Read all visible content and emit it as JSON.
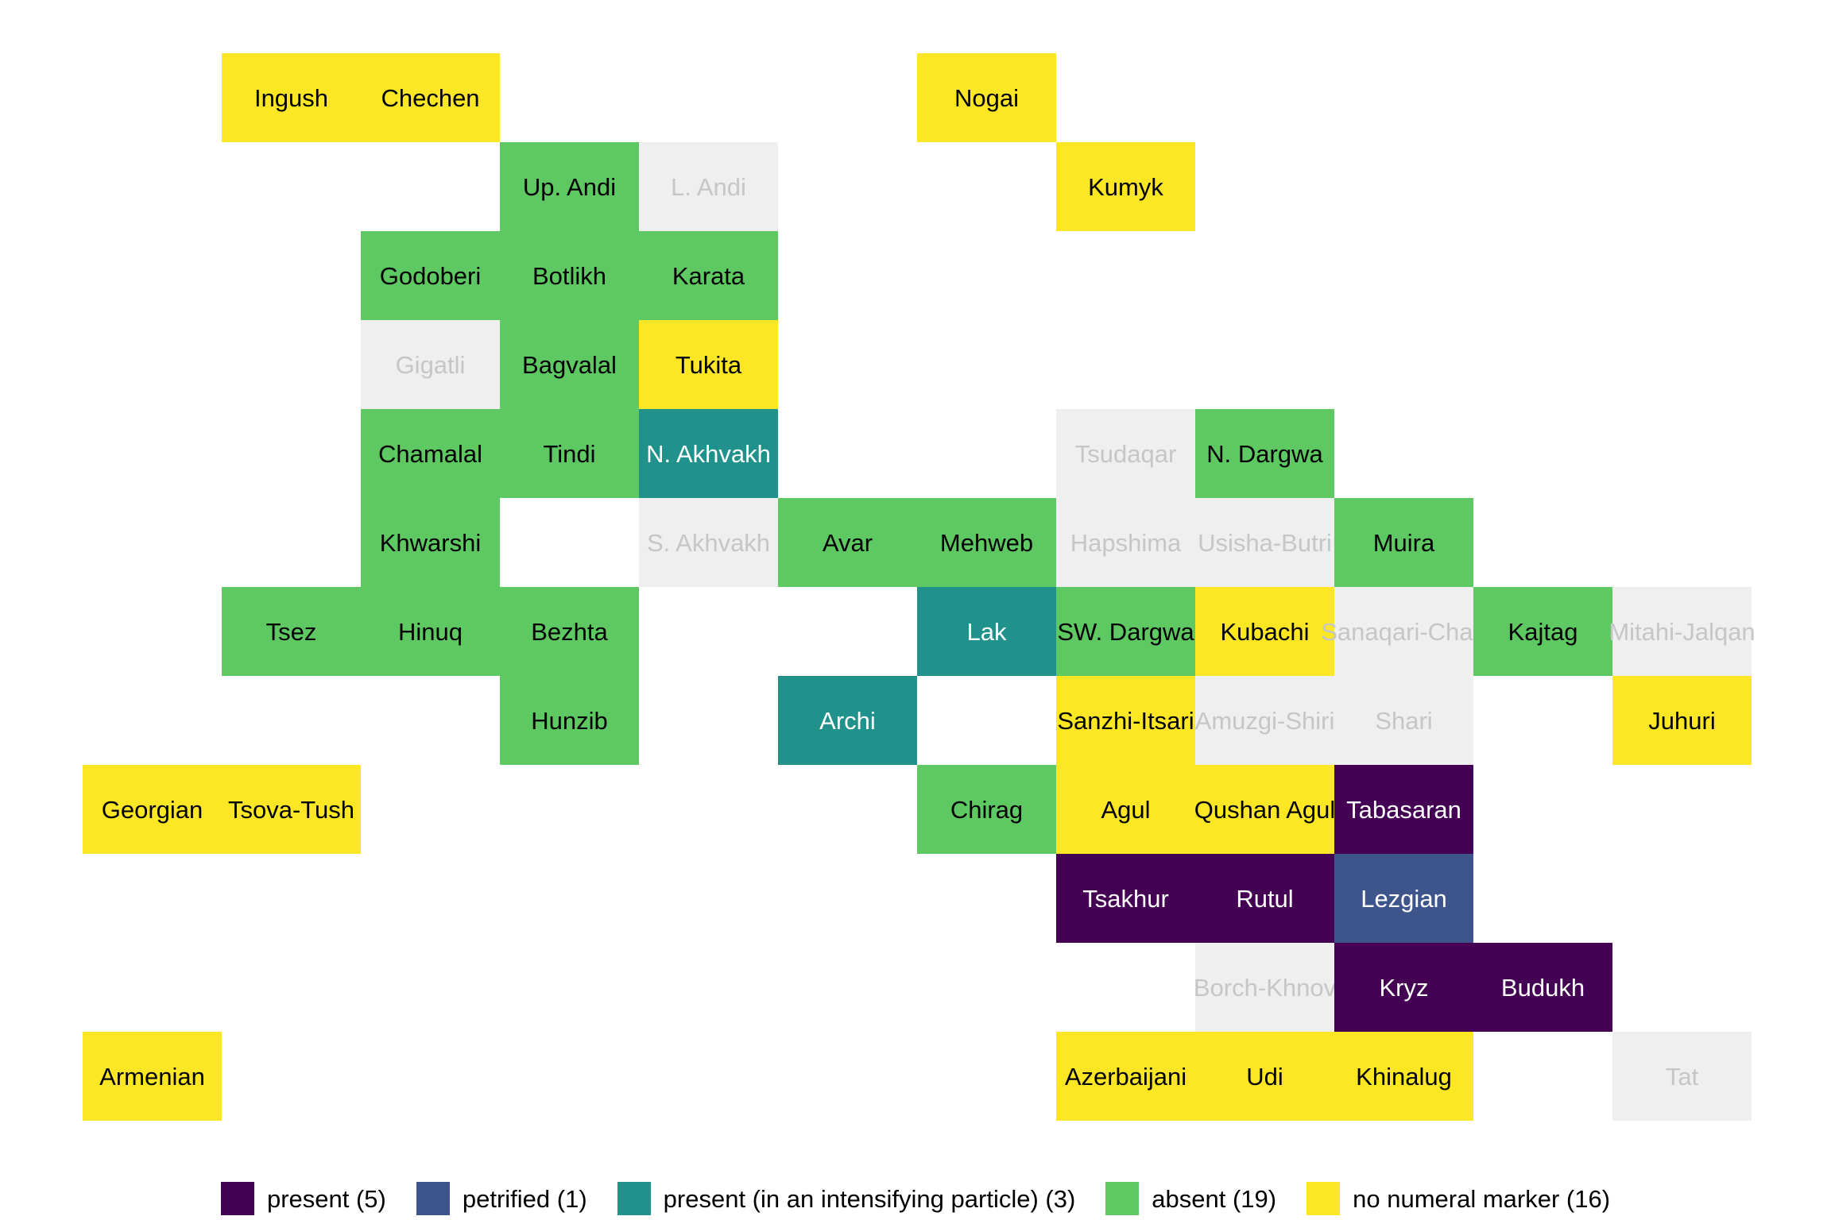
{
  "chart_data": {
    "type": "heatmap",
    "subtype": "genealogical-tile-map",
    "title": "",
    "grid": {
      "rows": 12,
      "cols": 12,
      "gridlines": false
    },
    "legend_position": "bottom-center",
    "legend": [
      {
        "value": "present",
        "label": "present (5)",
        "count": 5,
        "color": "#440154",
        "text_color": "#ffffff"
      },
      {
        "value": "petrified",
        "label": "petrified (1)",
        "count": 1,
        "color": "#3e558c",
        "text_color": "#ffffff"
      },
      {
        "value": "intensifying",
        "label": "present (in an intensifying particle) (3)",
        "count": 3,
        "color": "#21918c",
        "text_color": "#ffffff"
      },
      {
        "value": "absent",
        "label": "absent (19)",
        "count": 19,
        "color": "#5ec962",
        "text_color": "#000000"
      },
      {
        "value": "no_numeral",
        "label": "no numeral marker (16)",
        "count": 16,
        "color": "#fde725",
        "text_color": "#000000"
      }
    ],
    "no_data": {
      "value": "no_data",
      "color": "#efefef",
      "text_color": "#c6c6c6"
    },
    "cells": [
      {
        "name": "Ingush",
        "row": 0,
        "col": 1,
        "value": "no_numeral"
      },
      {
        "name": "Chechen",
        "row": 0,
        "col": 2,
        "value": "no_numeral"
      },
      {
        "name": "Nogai",
        "row": 0,
        "col": 6,
        "value": "no_numeral"
      },
      {
        "name": "Up. Andi",
        "row": 1,
        "col": 3,
        "value": "absent"
      },
      {
        "name": "L. Andi",
        "row": 1,
        "col": 4,
        "value": "no_data"
      },
      {
        "name": "Kumyk",
        "row": 1,
        "col": 7,
        "value": "no_numeral"
      },
      {
        "name": "Godoberi",
        "row": 2,
        "col": 2,
        "value": "absent"
      },
      {
        "name": "Botlikh",
        "row": 2,
        "col": 3,
        "value": "absent"
      },
      {
        "name": "Karata",
        "row": 2,
        "col": 4,
        "value": "absent"
      },
      {
        "name": "Gigatli",
        "row": 3,
        "col": 2,
        "value": "no_data"
      },
      {
        "name": "Bagvalal",
        "row": 3,
        "col": 3,
        "value": "absent"
      },
      {
        "name": "Tukita",
        "row": 3,
        "col": 4,
        "value": "no_numeral"
      },
      {
        "name": "Chamalal",
        "row": 4,
        "col": 2,
        "value": "absent"
      },
      {
        "name": "Tindi",
        "row": 4,
        "col": 3,
        "value": "absent"
      },
      {
        "name": "N. Akhvakh",
        "row": 4,
        "col": 4,
        "value": "intensifying"
      },
      {
        "name": "Tsudaqar",
        "row": 4,
        "col": 7,
        "value": "no_data"
      },
      {
        "name": "N. Dargwa",
        "row": 4,
        "col": 8,
        "value": "absent"
      },
      {
        "name": "Khwarshi",
        "row": 5,
        "col": 2,
        "value": "absent"
      },
      {
        "name": "S. Akhvakh",
        "row": 5,
        "col": 4,
        "value": "no_data"
      },
      {
        "name": "Avar",
        "row": 5,
        "col": 5,
        "value": "absent"
      },
      {
        "name": "Mehweb",
        "row": 5,
        "col": 6,
        "value": "absent"
      },
      {
        "name": "Hapshima",
        "row": 5,
        "col": 7,
        "value": "no_data"
      },
      {
        "name": "Usisha-Butri",
        "row": 5,
        "col": 8,
        "value": "no_data"
      },
      {
        "name": "Muira",
        "row": 5,
        "col": 9,
        "value": "absent"
      },
      {
        "name": "Tsez",
        "row": 6,
        "col": 1,
        "value": "absent"
      },
      {
        "name": "Hinuq",
        "row": 6,
        "col": 2,
        "value": "absent"
      },
      {
        "name": "Bezhta",
        "row": 6,
        "col": 3,
        "value": "absent"
      },
      {
        "name": "Lak",
        "row": 6,
        "col": 6,
        "value": "intensifying"
      },
      {
        "name": "SW. Dargwa",
        "row": 6,
        "col": 7,
        "value": "absent"
      },
      {
        "name": "Kubachi",
        "row": 6,
        "col": 8,
        "value": "no_numeral"
      },
      {
        "name": "Sanaqari-Chah",
        "row": 6,
        "col": 9,
        "value": "no_data"
      },
      {
        "name": "Kajtag",
        "row": 6,
        "col": 10,
        "value": "absent"
      },
      {
        "name": "Mitahi-Jalqan",
        "row": 6,
        "col": 11,
        "value": "no_data"
      },
      {
        "name": "Hunzib",
        "row": 7,
        "col": 3,
        "value": "absent"
      },
      {
        "name": "Archi",
        "row": 7,
        "col": 5,
        "value": "intensifying"
      },
      {
        "name": "Sanzhi-Itsari",
        "row": 7,
        "col": 7,
        "value": "no_numeral"
      },
      {
        "name": "Amuzgi-Shiri",
        "row": 7,
        "col": 8,
        "value": "no_data"
      },
      {
        "name": "Shari",
        "row": 7,
        "col": 9,
        "value": "no_data"
      },
      {
        "name": "Juhuri",
        "row": 7,
        "col": 11,
        "value": "no_numeral"
      },
      {
        "name": "Georgian",
        "row": 8,
        "col": 0,
        "value": "no_numeral"
      },
      {
        "name": "Tsova-Tush",
        "row": 8,
        "col": 1,
        "value": "no_numeral"
      },
      {
        "name": "Chirag",
        "row": 8,
        "col": 6,
        "value": "absent"
      },
      {
        "name": "Agul",
        "row": 8,
        "col": 7,
        "value": "no_numeral"
      },
      {
        "name": "Qushan Agul",
        "row": 8,
        "col": 8,
        "value": "no_numeral"
      },
      {
        "name": "Tabasaran",
        "row": 8,
        "col": 9,
        "value": "present"
      },
      {
        "name": "Tsakhur",
        "row": 9,
        "col": 7,
        "value": "present"
      },
      {
        "name": "Rutul",
        "row": 9,
        "col": 8,
        "value": "present"
      },
      {
        "name": "Lezgian",
        "row": 9,
        "col": 9,
        "value": "petrified"
      },
      {
        "name": "Borch-Khnov",
        "row": 10,
        "col": 8,
        "value": "no_data"
      },
      {
        "name": "Kryz",
        "row": 10,
        "col": 9,
        "value": "present"
      },
      {
        "name": "Budukh",
        "row": 10,
        "col": 10,
        "value": "present"
      },
      {
        "name": "Armenian",
        "row": 11,
        "col": 0,
        "value": "no_numeral"
      },
      {
        "name": "Azerbaijani",
        "row": 11,
        "col": 7,
        "value": "no_numeral"
      },
      {
        "name": "Udi",
        "row": 11,
        "col": 8,
        "value": "no_numeral"
      },
      {
        "name": "Khinalug",
        "row": 11,
        "col": 9,
        "value": "no_numeral"
      },
      {
        "name": "Tat",
        "row": 11,
        "col": 11,
        "value": "no_data"
      }
    ]
  }
}
